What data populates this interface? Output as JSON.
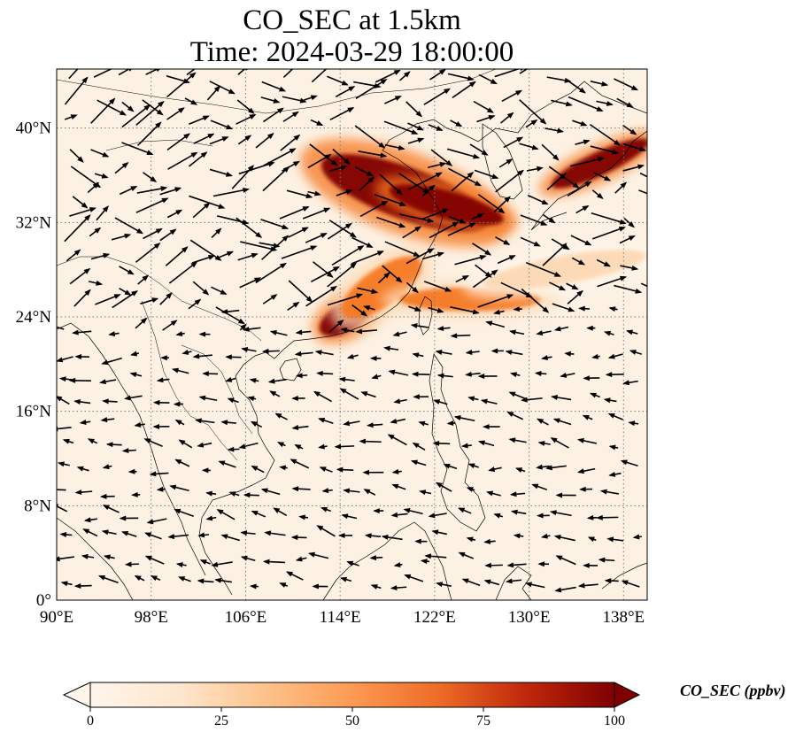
{
  "title": {
    "line1": "CO_SEC at 1.5km",
    "line2": "Time: 2024-03-29 18:00:00"
  },
  "map": {
    "extent": {
      "lon": [
        90,
        140
      ],
      "lat": [
        0,
        45
      ]
    },
    "lat_ticks": [
      {
        "value": 40,
        "label": "40°N"
      },
      {
        "value": 32,
        "label": "32°N"
      },
      {
        "value": 24,
        "label": "24°N"
      },
      {
        "value": 16,
        "label": "16°N"
      },
      {
        "value": 8,
        "label": "8°N"
      },
      {
        "value": 0,
        "label": "0°"
      }
    ],
    "lon_ticks": [
      {
        "value": 90,
        "label": "90°E"
      },
      {
        "value": 98,
        "label": "98°E"
      },
      {
        "value": 106,
        "label": "106°E"
      },
      {
        "value": 114,
        "label": "114°E"
      },
      {
        "value": 122,
        "label": "122°E"
      },
      {
        "value": 130,
        "label": "130°E"
      },
      {
        "value": 138,
        "label": "138°E"
      }
    ],
    "gridlines": "dotted"
  },
  "colorbar": {
    "label": "CO_SEC (ppbv)",
    "ticks": [
      {
        "value": 0,
        "label": "0"
      },
      {
        "value": 25,
        "label": "25"
      },
      {
        "value": 50,
        "label": "50"
      },
      {
        "value": 75,
        "label": "75"
      },
      {
        "value": 100,
        "label": "100"
      }
    ],
    "range": [
      0,
      100
    ],
    "extend": "both",
    "colors": [
      "#fff5eb",
      "#fdd9b4",
      "#fdab67",
      "#f67824",
      "#d94801",
      "#a63603",
      "#7f0000"
    ]
  },
  "plumes": [
    {
      "name": "north-china-plume",
      "lon": 119.5,
      "lat": 34.5,
      "rx_deg": 7.5,
      "ry_deg": 2.2,
      "rotate": 20,
      "level": 100
    },
    {
      "name": "yellow-sea-plume",
      "lon": 123,
      "lat": 33.5,
      "rx_deg": 5,
      "ry_deg": 1.2,
      "rotate": 15,
      "level": 95
    },
    {
      "name": "japan-plume",
      "lon": 136,
      "lat": 37,
      "rx_deg": 4.5,
      "ry_deg": 1.0,
      "rotate": -25,
      "level": 95
    },
    {
      "name": "south-china-plume",
      "lon": 114.5,
      "lat": 24,
      "rx_deg": 2.5,
      "ry_deg": 1.2,
      "rotate": -30,
      "level": 100
    },
    {
      "name": "taiwan-strait-plume",
      "lon": 117.5,
      "lat": 26.5,
      "rx_deg": 4,
      "ry_deg": 1.6,
      "rotate": -35,
      "level": 55
    },
    {
      "name": "east-china-sea-plume",
      "lon": 125,
      "lat": 25.5,
      "rx_deg": 6,
      "ry_deg": 1.0,
      "rotate": 0,
      "level": 45
    },
    {
      "name": "pacific-plume",
      "lon": 133,
      "lat": 28,
      "rx_deg": 7,
      "ry_deg": 1.2,
      "rotate": -10,
      "level": 15
    }
  ]
}
